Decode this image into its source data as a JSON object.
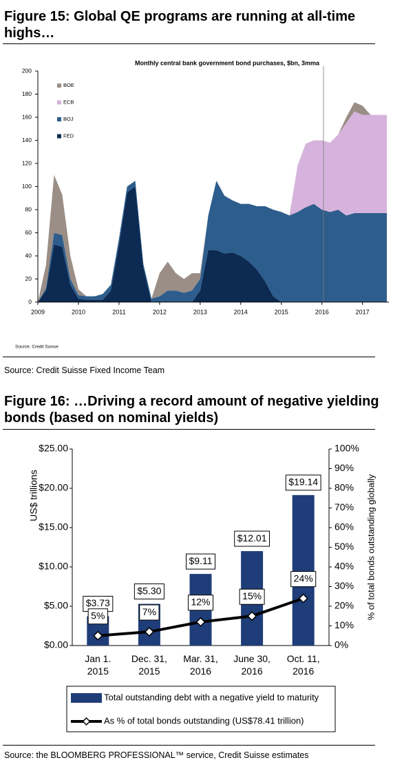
{
  "figures": [
    {
      "heading": "Figure 15: Global QE programs are running at all-time highs…",
      "source": "Source: Credit Suisse Fixed Income Team"
    },
    {
      "heading": "Figure 16: …Driving a record amount of negative yielding bonds (based on nominal yields)",
      "source": "Source: the BLOOMBERG PROFESSIONAL™ service, Credit Suisse estimates"
    }
  ],
  "chart_data": [
    {
      "type": "stacked-area",
      "title": "Monthly central bank government bond purchases, $bn, 3mma",
      "source": "Source: Credit Suisse",
      "x": [
        2009.0,
        2009.2,
        2009.4,
        2009.6,
        2009.8,
        2010.0,
        2010.2,
        2010.4,
        2010.6,
        2010.8,
        2011.0,
        2011.2,
        2011.4,
        2011.6,
        2011.8,
        2012.0,
        2012.2,
        2012.4,
        2012.6,
        2012.8,
        2013.0,
        2013.2,
        2013.4,
        2013.6,
        2013.8,
        2014.0,
        2014.2,
        2014.4,
        2014.6,
        2014.8,
        2015.0,
        2015.2,
        2015.4,
        2015.6,
        2015.8,
        2016.0,
        2016.2,
        2016.4,
        2016.6,
        2016.8,
        2017.0,
        2017.2,
        2017.4,
        2017.6
      ],
      "series": [
        {
          "name": "BOE",
          "color": "#9a8e86",
          "values": [
            0,
            20,
            50,
            35,
            20,
            5,
            0,
            0,
            0,
            0,
            0,
            0,
            0,
            0,
            0,
            20,
            25,
            15,
            12,
            15,
            5,
            0,
            0,
            0,
            0,
            0,
            0,
            0,
            0,
            0,
            0,
            0,
            0,
            0,
            0,
            0,
            0,
            0,
            5,
            8,
            8,
            0,
            0,
            0
          ]
        },
        {
          "name": "ECB",
          "color": "#d6b3dc",
          "values": [
            0,
            0,
            0,
            0,
            0,
            0,
            0,
            0,
            0,
            0,
            0,
            0,
            0,
            0,
            0,
            0,
            0,
            0,
            0,
            0,
            0,
            0,
            0,
            0,
            0,
            0,
            0,
            0,
            0,
            0,
            0,
            0,
            40,
            55,
            55,
            60,
            60,
            65,
            80,
            88,
            85,
            85,
            85,
            85
          ]
        },
        {
          "name": "BOJ",
          "color": "#2d5d8d",
          "values": [
            0,
            2,
            10,
            10,
            5,
            3,
            3,
            3,
            5,
            5,
            5,
            5,
            5,
            3,
            3,
            5,
            10,
            10,
            8,
            10,
            10,
            30,
            60,
            50,
            45,
            45,
            50,
            55,
            65,
            75,
            78,
            75,
            78,
            82,
            85,
            80,
            78,
            80,
            75,
            77,
            77,
            77,
            77,
            77
          ]
        },
        {
          "name": "FED",
          "color": "#0c2a52",
          "values": [
            0,
            10,
            50,
            48,
            15,
            3,
            2,
            2,
            2,
            10,
            50,
            95,
            100,
            30,
            0,
            0,
            0,
            0,
            0,
            0,
            10,
            45,
            45,
            42,
            43,
            40,
            35,
            28,
            18,
            5,
            0,
            0,
            0,
            0,
            0,
            0,
            0,
            0,
            0,
            0,
            0,
            0,
            0,
            0
          ]
        }
      ],
      "xlim": [
        2009,
        2017.65
      ],
      "xticks": [
        2009,
        2010,
        2011,
        2012,
        2013,
        2014,
        2015,
        2016,
        2017
      ],
      "ylim": [
        0,
        200
      ],
      "yticks": [
        0,
        20,
        40,
        60,
        80,
        100,
        120,
        140,
        160,
        180,
        200
      ]
    },
    {
      "type": "bar-line",
      "categories": [
        "Jan 1. 2015",
        "Dec. 31, 2015",
        "Mar. 31, 2016",
        "June 30, 2016",
        "Oct. 11, 2016"
      ],
      "ylabel": "US$ trillions",
      "y2label": "% of total bonds outstanding globally",
      "series": [
        {
          "name": "Total outstanding debt with a negative yield to maturity",
          "color": "#1f3d78",
          "values": [
            3.73,
            5.3,
            9.11,
            12.01,
            19.14
          ],
          "value_labels": [
            "$3.73",
            "$5.30",
            "$9.11",
            "$12.01",
            "$19.14"
          ]
        },
        {
          "name": "As % of total bonds outstanding (US$78.41 trillion)",
          "color": "#000000",
          "axis": "y2",
          "values": [
            5,
            7,
            12,
            15,
            24
          ],
          "value_labels": [
            "5%",
            "7%",
            "12%",
            "15%",
            "24%"
          ]
        }
      ],
      "ylim": [
        0,
        25
      ],
      "yticks": [
        {
          "value": 0,
          "label": "$0.00"
        },
        {
          "value": 5,
          "label": "$5.00"
        },
        {
          "value": 10,
          "label": "$10.00"
        },
        {
          "value": 15,
          "label": "$15.00"
        },
        {
          "value": 20,
          "label": "$20.00"
        },
        {
          "value": 25,
          "label": "$25.00"
        }
      ],
      "y2lim": [
        0,
        100
      ],
      "y2ticks": [
        {
          "value": 0,
          "label": "0%"
        },
        {
          "value": 10,
          "label": "10%"
        },
        {
          "value": 20,
          "label": "20%"
        },
        {
          "value": 30,
          "label": "30%"
        },
        {
          "value": 40,
          "label": "40%"
        },
        {
          "value": 50,
          "label": "50%"
        },
        {
          "value": 60,
          "label": "60%"
        },
        {
          "value": 70,
          "label": "70%"
        },
        {
          "value": 80,
          "label": "80%"
        },
        {
          "value": 90,
          "label": "90%"
        },
        {
          "value": 100,
          "label": "100%"
        }
      ]
    }
  ]
}
